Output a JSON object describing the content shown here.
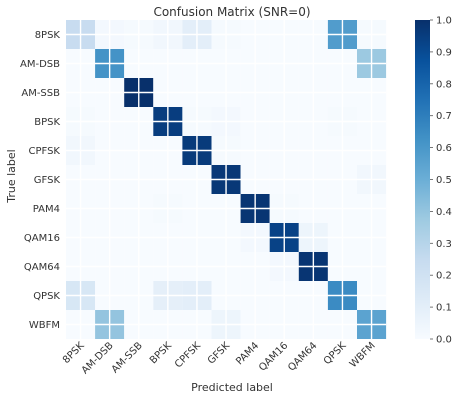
{
  "chart_data": {
    "type": "heatmap",
    "title": "Confusion Matrix (SNR=0)",
    "xlabel": "Predicted label",
    "ylabel": "True label",
    "categories": [
      "8PSK",
      "AM-DSB",
      "AM-SSB",
      "BPSK",
      "CPFSK",
      "GFSK",
      "PAM4",
      "QAM16",
      "QAM64",
      "QPSK",
      "WBFM"
    ],
    "matrix": [
      [
        0.24,
        0.02,
        0.01,
        0.03,
        0.1,
        0.01,
        0.0,
        0.0,
        0.0,
        0.58,
        0.01
      ],
      [
        0.0,
        0.62,
        0.0,
        0.0,
        0.0,
        0.0,
        0.0,
        0.0,
        0.0,
        0.0,
        0.38
      ],
      [
        0.0,
        0.0,
        1.0,
        0.0,
        0.0,
        0.0,
        0.0,
        0.0,
        0.0,
        0.0,
        0.0
      ],
      [
        0.01,
        0.0,
        0.0,
        0.95,
        0.01,
        0.02,
        0.0,
        0.0,
        0.0,
        0.01,
        0.0
      ],
      [
        0.03,
        0.0,
        0.0,
        0.0,
        0.96,
        0.01,
        0.0,
        0.0,
        0.0,
        0.0,
        0.0
      ],
      [
        0.0,
        0.0,
        0.0,
        0.0,
        0.0,
        0.97,
        0.0,
        0.0,
        0.0,
        0.0,
        0.03
      ],
      [
        0.0,
        0.0,
        0.0,
        0.01,
        0.0,
        0.0,
        0.98,
        0.01,
        0.0,
        0.0,
        0.0
      ],
      [
        0.0,
        0.0,
        0.0,
        0.0,
        0.0,
        0.0,
        0.02,
        0.93,
        0.05,
        0.0,
        0.0
      ],
      [
        0.0,
        0.0,
        0.0,
        0.0,
        0.0,
        0.0,
        0.0,
        0.02,
        0.98,
        0.0,
        0.0
      ],
      [
        0.16,
        0.0,
        0.0,
        0.09,
        0.1,
        0.0,
        0.0,
        0.0,
        0.0,
        0.65,
        0.0
      ],
      [
        0.0,
        0.4,
        0.0,
        0.0,
        0.0,
        0.05,
        0.0,
        0.0,
        0.0,
        0.0,
        0.55
      ]
    ],
    "zlim": [
      0,
      1
    ],
    "colorbar_ticks": [
      "0.0",
      "0.1",
      "0.2",
      "0.3",
      "0.4",
      "0.5",
      "0.6",
      "0.7",
      "0.8",
      "0.9",
      "1.0"
    ],
    "colormap": "Blues",
    "colormap_stops": [
      "#f7fbff",
      "#deebf7",
      "#c6dbef",
      "#9ecae1",
      "#6baed6",
      "#4292c6",
      "#2171b5",
      "#08519c",
      "#08306b"
    ],
    "grid_color": "#ffffff",
    "grid": true
  }
}
